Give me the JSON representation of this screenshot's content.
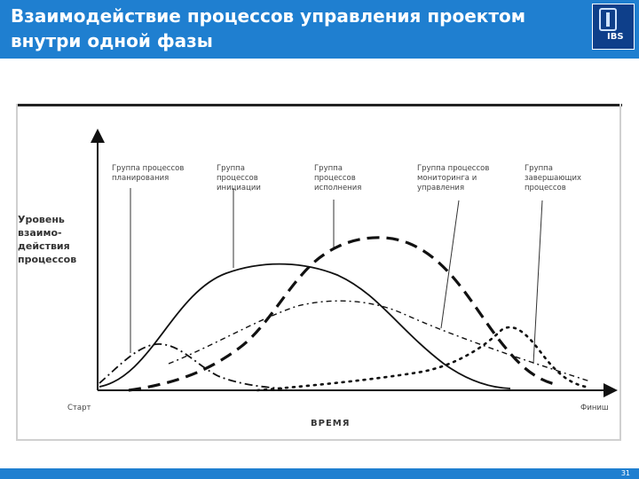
{
  "slide": {
    "title": "Взаимодействие процессов управления проектом внутри одной фазы",
    "logo_text": "IBS",
    "page_number": "31"
  },
  "diagram": {
    "y_axis_label": "Уровень взаимо-действия процессов",
    "x_axis_label": "ВРЕМЯ",
    "x_start_label": "Старт",
    "x_end_label": "Финиш",
    "process_groups": [
      {
        "name": "Группа процессов планирования",
        "line_style": "dash-dot"
      },
      {
        "name": "Группа процессов инициации",
        "line_style": "solid"
      },
      {
        "name": "Группа процессов исполнения",
        "line_style": "long-dash"
      },
      {
        "name": "Группа процессов мониторинга и управления",
        "line_style": "dash-dot-light"
      },
      {
        "name": "Группа завершающих процессов",
        "line_style": "dotted"
      }
    ]
  },
  "colors": {
    "header": "#1f7fd0",
    "logo": "#0e3f8a",
    "lines": "#111111"
  }
}
